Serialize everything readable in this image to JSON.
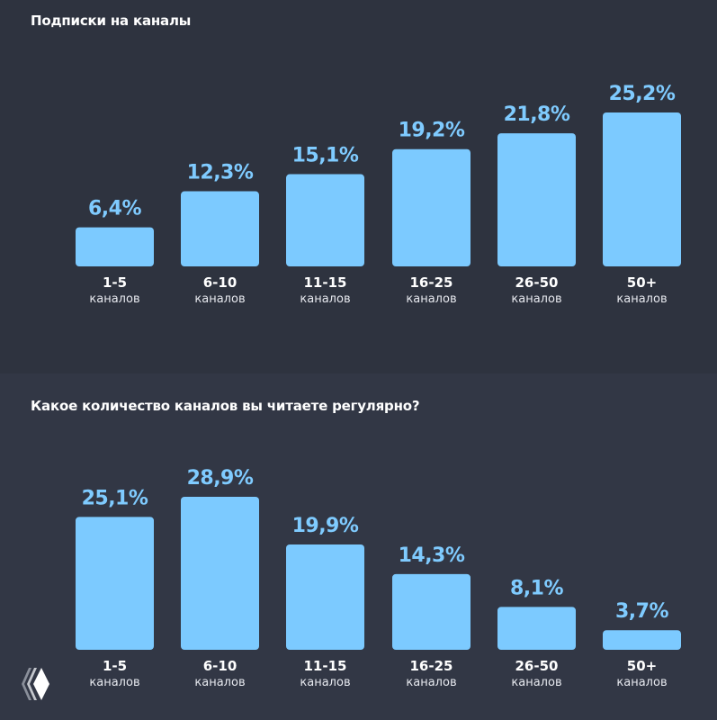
{
  "colors": {
    "bar": "#7ccaff",
    "background": "#2e333f",
    "text": "#ffffff"
  },
  "logo_icon": "layered-diamond-logo",
  "chart_data": [
    {
      "type": "bar",
      "title": "Подписки на каналы",
      "categories": [
        "1-5",
        "6-10",
        "11-15",
        "16-25",
        "26-50",
        "50+"
      ],
      "category_unit": "каналов",
      "values": [
        6.4,
        12.3,
        15.1,
        19.2,
        21.8,
        25.2
      ],
      "labels": [
        "6,4%",
        "12,3%",
        "15,1%",
        "19,2%",
        "21,8%",
        "25,2%"
      ],
      "ylim": [
        0,
        25.2
      ],
      "grid": false
    },
    {
      "type": "bar",
      "title": "Какое количество каналов вы читаете регулярно?",
      "categories": [
        "1-5",
        "6-10",
        "11-15",
        "16-25",
        "26-50",
        "50+"
      ],
      "category_unit": "каналов",
      "values": [
        25.1,
        28.9,
        19.9,
        14.3,
        8.1,
        3.7
      ],
      "labels": [
        "25,1%",
        "28,9%",
        "19,9%",
        "14,3%",
        "8,1%",
        "3,7%"
      ],
      "ylim": [
        0,
        28.9
      ],
      "grid": false
    }
  ]
}
